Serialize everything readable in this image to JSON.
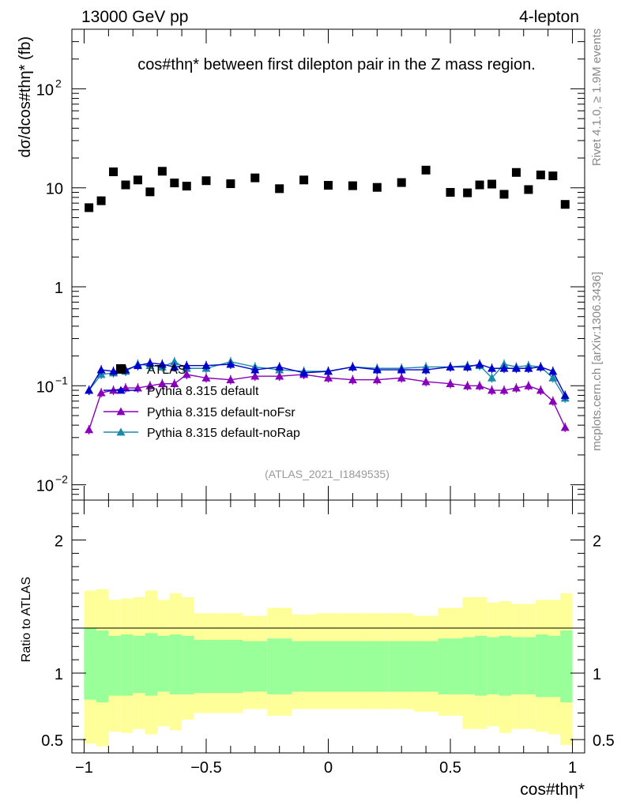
{
  "header": {
    "left": "13000 GeV pp",
    "right": "4-lepton",
    "title": "cos#thη* between first dilepton pair in the Z mass region.",
    "side_rivet": "Rivet 4.1.0, ≥ 1.9M events",
    "side_mcplots": "mcplots.cern.ch [arXiv:1306.3436]",
    "analysis": "(ATLAS_2021_I1849535)"
  },
  "chart_data": [
    {
      "type": "scatter",
      "panel": "main",
      "ylabel": "dσ/dcos#thη* (fb)",
      "yscale": "log",
      "ylim": [
        0.007,
        400
      ],
      "xlim": [
        -1.05,
        1.05
      ],
      "yticks": [
        {
          "v": 0.01,
          "label": "10",
          "sup": "−2"
        },
        {
          "v": 0.1,
          "label": "10",
          "sup": "−1"
        },
        {
          "v": 1,
          "label": "1",
          "sup": ""
        },
        {
          "v": 10,
          "label": "10",
          "sup": ""
        },
        {
          "v": 100,
          "label": "10",
          "sup": "2"
        }
      ],
      "x": [
        -0.98,
        -0.93,
        -0.88,
        -0.83,
        -0.78,
        -0.73,
        -0.68,
        -0.63,
        -0.58,
        -0.5,
        -0.4,
        -0.3,
        -0.2,
        -0.1,
        0.0,
        0.1,
        0.2,
        0.3,
        0.4,
        0.5,
        0.57,
        0.62,
        0.67,
        0.72,
        0.77,
        0.82,
        0.87,
        0.92,
        0.97
      ],
      "series": [
        {
          "name": "ATLAS",
          "color": "#000000",
          "marker": "square",
          "values": [
            6.3,
            7.4,
            14.5,
            10.7,
            12.0,
            9.1,
            14.7,
            11.2,
            10.4,
            11.8,
            11.0,
            12.6,
            9.8,
            12.0,
            10.6,
            10.5,
            10.1,
            11.3,
            15.1,
            9.0,
            8.9,
            10.7,
            10.9,
            8.6,
            14.3,
            9.6,
            13.5,
            13.2,
            6.8
          ]
        },
        {
          "name": "Pythia 8.315 default",
          "color": "#0000cc",
          "marker": "triangle",
          "values": [
            0.09,
            0.145,
            0.14,
            0.145,
            0.16,
            0.17,
            0.165,
            0.155,
            0.16,
            0.16,
            0.165,
            0.145,
            0.155,
            0.135,
            0.14,
            0.155,
            0.145,
            0.145,
            0.145,
            0.155,
            0.155,
            0.165,
            0.15,
            0.15,
            0.15,
            0.15,
            0.155,
            0.14,
            0.08
          ]
        },
        {
          "name": "Pythia 8.315 default-noFsr",
          "color": "#8800bb",
          "marker": "triangle",
          "values": [
            0.036,
            0.085,
            0.09,
            0.095,
            0.095,
            0.1,
            0.105,
            0.105,
            0.13,
            0.12,
            0.115,
            0.125,
            0.125,
            0.13,
            0.12,
            0.115,
            0.115,
            0.12,
            0.11,
            0.105,
            0.1,
            0.1,
            0.09,
            0.09,
            0.095,
            0.1,
            0.09,
            0.07,
            0.038
          ]
        },
        {
          "name": "Pythia 8.315 default-noRap",
          "color": "#1a8aaa",
          "marker": "triangle",
          "values": [
            0.09,
            0.13,
            0.135,
            0.14,
            0.165,
            0.16,
            0.155,
            0.175,
            0.15,
            0.15,
            0.175,
            0.155,
            0.145,
            0.14,
            0.14,
            0.155,
            0.15,
            0.15,
            0.155,
            0.155,
            0.16,
            0.16,
            0.12,
            0.165,
            0.155,
            0.16,
            0.155,
            0.12,
            0.075
          ]
        }
      ]
    },
    {
      "type": "area",
      "panel": "ratio",
      "ylabel": "Ratio to ATLAS",
      "xlabel": "cos#thη*",
      "xlim": [
        -1.05,
        1.05
      ],
      "ylim": [
        0.4,
        2.3
      ],
      "yticks": [
        "0.5",
        "1",
        "2"
      ],
      "xticks": [
        "−1",
        "−0.5",
        "0",
        "0.5",
        "1"
      ],
      "edges": [
        -1.0,
        -0.95,
        -0.9,
        -0.85,
        -0.8,
        -0.75,
        -0.7,
        -0.65,
        -0.6,
        -0.55,
        -0.45,
        -0.35,
        -0.25,
        -0.15,
        -0.05,
        0.05,
        0.15,
        0.25,
        0.35,
        0.45,
        0.55,
        0.6,
        0.65,
        0.7,
        0.75,
        0.8,
        0.85,
        0.9,
        0.95,
        1.0
      ],
      "stat_band": {
        "name": "stat",
        "color": "#99ff99",
        "lo": [
          0.8,
          0.78,
          0.83,
          0.83,
          0.85,
          0.83,
          0.86,
          0.84,
          0.84,
          0.85,
          0.85,
          0.86,
          0.84,
          0.86,
          0.86,
          0.86,
          0.86,
          0.86,
          0.86,
          0.84,
          0.84,
          0.83,
          0.84,
          0.83,
          0.84,
          0.84,
          0.82,
          0.82,
          0.78
        ],
        "hi": [
          1.34,
          1.32,
          1.28,
          1.29,
          1.28,
          1.3,
          1.28,
          1.29,
          1.28,
          1.25,
          1.25,
          1.24,
          1.26,
          1.24,
          1.24,
          1.24,
          1.24,
          1.24,
          1.24,
          1.26,
          1.27,
          1.28,
          1.27,
          1.28,
          1.27,
          1.27,
          1.29,
          1.28,
          1.32
        ]
      },
      "syst_band": {
        "name": "syst",
        "color": "#ffff99",
        "lo": [
          0.47,
          0.45,
          0.56,
          0.55,
          0.58,
          0.54,
          0.6,
          0.57,
          0.65,
          0.7,
          0.7,
          0.73,
          0.68,
          0.73,
          0.73,
          0.73,
          0.73,
          0.73,
          0.71,
          0.68,
          0.58,
          0.58,
          0.6,
          0.55,
          0.58,
          0.58,
          0.56,
          0.54,
          0.46
        ],
        "hi": [
          1.62,
          1.63,
          1.55,
          1.56,
          1.57,
          1.62,
          1.55,
          1.6,
          1.57,
          1.45,
          1.45,
          1.43,
          1.49,
          1.44,
          1.45,
          1.45,
          1.45,
          1.45,
          1.43,
          1.49,
          1.57,
          1.57,
          1.53,
          1.54,
          1.52,
          1.52,
          1.55,
          1.55,
          1.6
        ]
      }
    }
  ],
  "legend": {
    "entries": [
      "ATLAS",
      "Pythia 8.315 default",
      "Pythia 8.315 default-noFsr",
      "Pythia 8.315 default-noRap"
    ]
  }
}
